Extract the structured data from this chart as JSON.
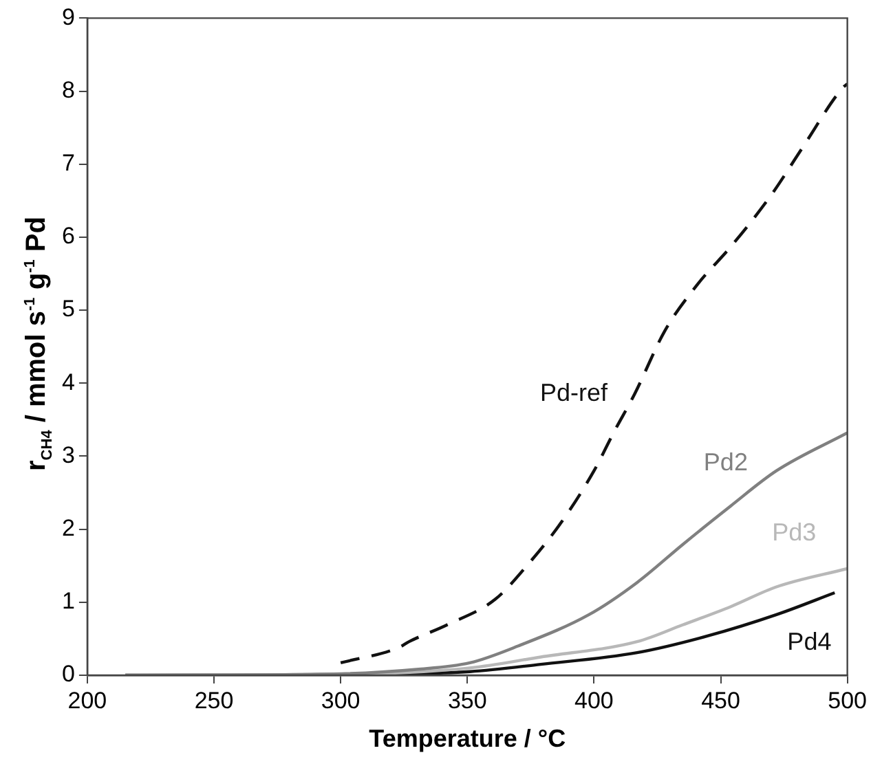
{
  "chart_data": {
    "type": "line",
    "xlabel": "Temperature / °C",
    "ylabel": "r$_{CH4}$ / mmol s$^{-1}$ g$^{-1}$ Pd",
    "xlim": [
      200,
      500
    ],
    "xticks": [
      200,
      250,
      300,
      350,
      400,
      450,
      500
    ],
    "ylim": [
      0,
      9
    ],
    "yticks": [
      0,
      1,
      2,
      3,
      4,
      5,
      6,
      7,
      8,
      9
    ],
    "grid": false,
    "legend": false,
    "marker": "none",
    "series": [
      {
        "name": "Pd-ref",
        "color": "#111111",
        "line_style": "dashed",
        "x": [
          300,
          323,
          327,
          342,
          361,
          374,
          387,
          400,
          408,
          416,
          428,
          441,
          454,
          470,
          482,
          498,
          500
        ],
        "values": [
          0.17,
          0.38,
          0.46,
          0.69,
          1.04,
          1.52,
          2.09,
          2.8,
          3.34,
          3.85,
          4.72,
          5.36,
          5.87,
          6.58,
          7.21,
          8.04,
          8.1
        ]
      },
      {
        "name": "Pd2",
        "color": "#808080",
        "line_style": "solid",
        "x": [
          215,
          300,
          330,
          351,
          370,
          398,
          417,
          435,
          454,
          472,
          500
        ],
        "values": [
          0,
          0.02,
          0.08,
          0.17,
          0.4,
          0.83,
          1.27,
          1.79,
          2.32,
          2.8,
          3.32
        ]
      },
      {
        "name": "Pd3",
        "color": "#b8b8b8",
        "line_style": "solid",
        "x": [
          215,
          300,
          351,
          379,
          417,
          435,
          454,
          472,
          500
        ],
        "values": [
          0,
          0.01,
          0.1,
          0.25,
          0.46,
          0.69,
          0.94,
          1.21,
          1.46
        ]
      },
      {
        "name": "Pd4",
        "color": "#111111",
        "line_style": "solid",
        "x": [
          215,
          300,
          351,
          379,
          417,
          445,
          472,
          495
        ],
        "values": [
          0,
          0.01,
          0.05,
          0.15,
          0.31,
          0.54,
          0.83,
          1.13
        ]
      }
    ]
  }
}
